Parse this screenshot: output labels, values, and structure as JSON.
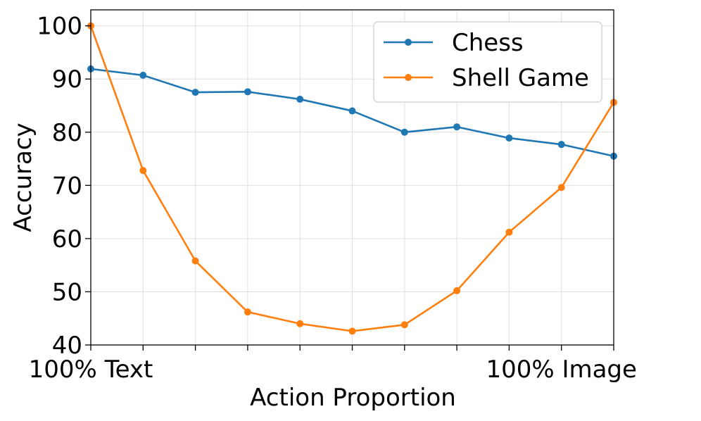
{
  "chart_data": {
    "type": "line",
    "title": "",
    "xlabel": "Action Proportion",
    "ylabel": "Accuracy",
    "xlim": [
      0,
      10
    ],
    "ylim": [
      40,
      103
    ],
    "yticks": [
      40,
      50,
      60,
      70,
      80,
      90,
      100
    ],
    "xticks": [
      0,
      1,
      2,
      3,
      4,
      5,
      6,
      7,
      8,
      9,
      10
    ],
    "xtick_labels": [
      {
        "x": 0,
        "label": "100% Text"
      },
      {
        "x": 9,
        "label": "100% Image"
      }
    ],
    "grid": true,
    "legend_position": "top-right",
    "x": [
      0,
      1,
      2,
      3,
      4,
      5,
      6,
      7,
      8,
      9,
      10
    ],
    "series": [
      {
        "name": "Chess",
        "color": "#1f77b4",
        "values": [
          91.9,
          90.7,
          87.5,
          87.6,
          86.2,
          84.0,
          80.0,
          81.0,
          78.9,
          77.7,
          75.5
        ]
      },
      {
        "name": "Shell Game",
        "color": "#ff7f0e",
        "values": [
          100.0,
          72.8,
          55.8,
          46.2,
          44.0,
          42.6,
          43.8,
          50.2,
          61.2,
          69.6,
          85.6
        ]
      }
    ]
  }
}
